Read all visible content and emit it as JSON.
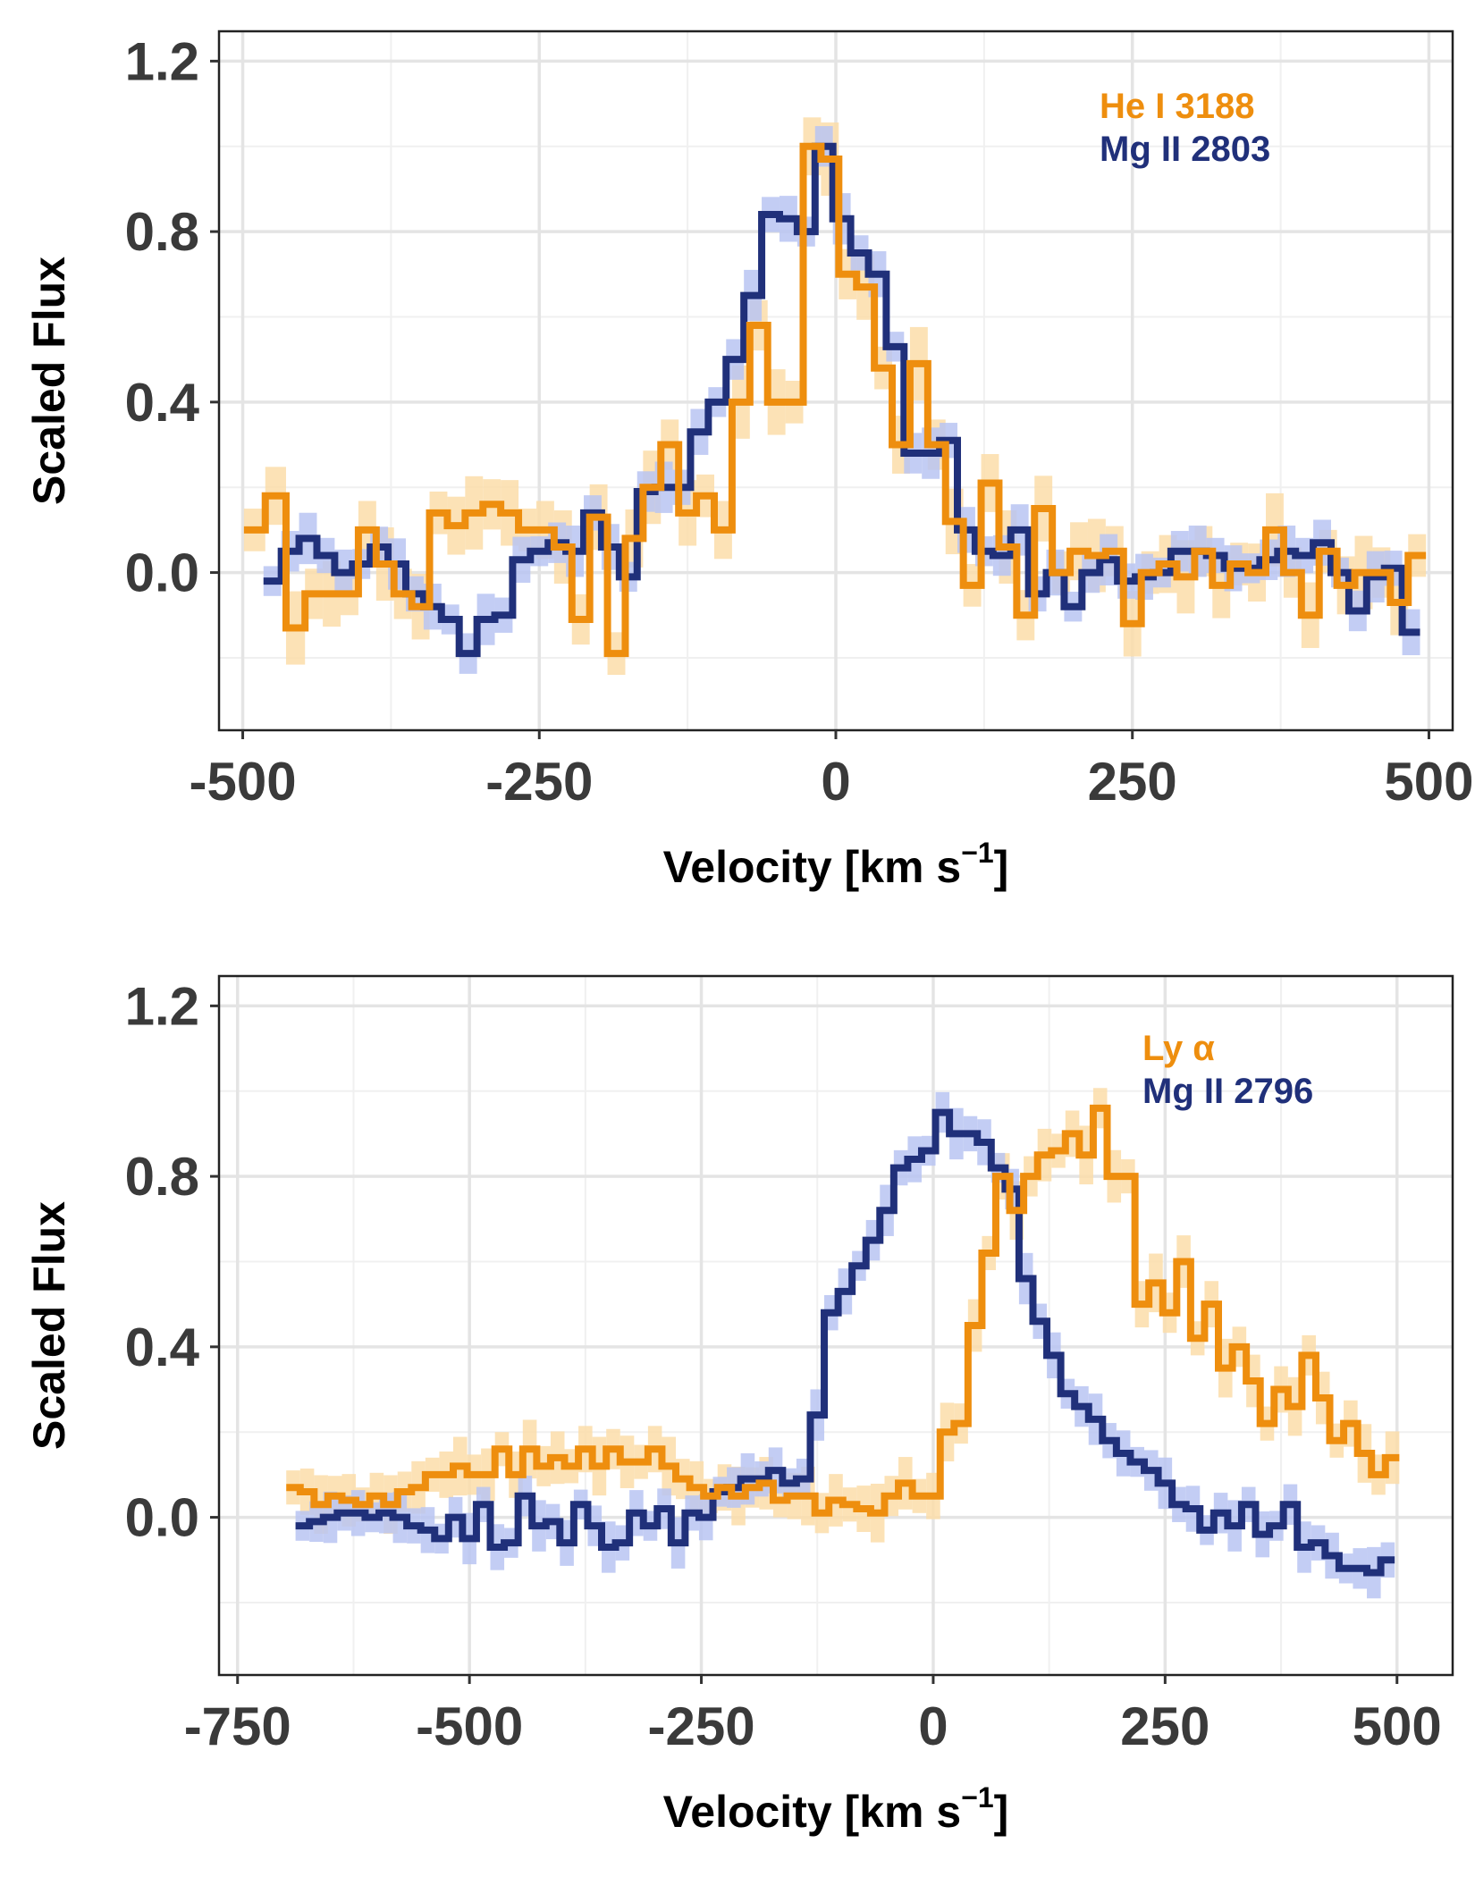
{
  "chart_data": [
    {
      "type": "line",
      "panel": "top",
      "xlabel": "Velocity [km s",
      "xlabel_sup": "−1",
      "xlabel_end": "]",
      "ylabel": "Scaled Flux",
      "xlim": [
        -520,
        520
      ],
      "ylim": [
        -0.37,
        1.27
      ],
      "xticks": [
        -500,
        -250,
        0,
        250,
        500
      ],
      "xtick_labels": [
        "-500",
        "-250",
        "0",
        "250",
        "500"
      ],
      "yticks": [
        0.0,
        0.4,
        0.8,
        1.2
      ],
      "ytick_labels": [
        "0.0",
        "0.4",
        "0.8",
        "1.2"
      ],
      "grid": true,
      "legend_position": "top-right",
      "series": [
        {
          "name": "He I 3188",
          "color": "#EE8E0E",
          "band_color": "#FBDDA9",
          "band_halfwidth": 0.05,
          "x": [
            -490,
            -472,
            -455,
            -440,
            -425,
            -410,
            -395,
            -380,
            -365,
            -350,
            -335,
            -320,
            -305,
            -290,
            -275,
            -260,
            -245,
            -230,
            -215,
            -200,
            -185,
            -170,
            -155,
            -140,
            -125,
            -110,
            -95,
            -80,
            -65,
            -50,
            -35,
            -20,
            -5,
            10,
            25,
            40,
            55,
            70,
            85,
            100,
            115,
            130,
            145,
            160,
            175,
            190,
            205,
            220,
            235,
            250,
            265,
            280,
            295,
            310,
            325,
            340,
            355,
            370,
            385,
            400,
            415,
            430,
            445,
            460,
            475,
            490
          ],
          "y": [
            0.1,
            0.18,
            -0.13,
            -0.05,
            -0.05,
            -0.05,
            0.1,
            0.02,
            -0.05,
            -0.08,
            0.14,
            0.11,
            0.14,
            0.16,
            0.14,
            0.1,
            0.1,
            0.06,
            -0.11,
            0.13,
            -0.19,
            0.08,
            0.2,
            0.3,
            0.14,
            0.18,
            0.1,
            0.4,
            0.58,
            0.4,
            0.4,
            1.0,
            0.97,
            0.7,
            0.67,
            0.48,
            0.3,
            0.49,
            0.3,
            0.12,
            -0.03,
            0.21,
            0.06,
            -0.1,
            0.15,
            0.0,
            0.05,
            0.04,
            0.05,
            -0.12,
            0.0,
            0.02,
            -0.01,
            0.05,
            -0.03,
            0.02,
            0.0,
            0.1,
            0.0,
            -0.1,
            0.05,
            -0.03,
            0.0,
            0.0,
            -0.07,
            0.04
          ]
        },
        {
          "name": "Mg II 2803",
          "color": "#20307A",
          "band_color": "#B8C4F2",
          "band_halfwidth": 0.035,
          "x": [
            -475,
            -460,
            -445,
            -430,
            -415,
            -400,
            -385,
            -370,
            -355,
            -340,
            -325,
            -310,
            -295,
            -280,
            -265,
            -250,
            -235,
            -220,
            -205,
            -190,
            -175,
            -160,
            -145,
            -130,
            -115,
            -100,
            -85,
            -70,
            -55,
            -40,
            -25,
            -10,
            5,
            20,
            35,
            50,
            65,
            80,
            95,
            110,
            125,
            140,
            155,
            170,
            185,
            200,
            215,
            230,
            245,
            260,
            275,
            290,
            305,
            320,
            335,
            350,
            365,
            380,
            395,
            410,
            425,
            440,
            455,
            470,
            485
          ],
          "y": [
            -0.02,
            0.05,
            0.08,
            0.04,
            0.0,
            0.02,
            0.06,
            0.02,
            -0.05,
            -0.08,
            -0.11,
            -0.19,
            -0.11,
            -0.1,
            0.03,
            0.05,
            0.07,
            0.05,
            0.14,
            0.06,
            -0.01,
            0.19,
            0.2,
            0.2,
            0.33,
            0.4,
            0.5,
            0.65,
            0.84,
            0.83,
            0.8,
            1.0,
            0.83,
            0.75,
            0.7,
            0.53,
            0.28,
            0.28,
            0.31,
            0.1,
            0.05,
            0.04,
            0.1,
            -0.05,
            0.0,
            -0.08,
            0.0,
            0.03,
            -0.02,
            -0.01,
            0.0,
            0.05,
            0.05,
            0.04,
            0.01,
            0.01,
            0.03,
            0.05,
            0.04,
            0.07,
            0.0,
            -0.09,
            -0.01,
            0.01,
            -0.14
          ]
        }
      ]
    },
    {
      "type": "line",
      "panel": "bottom",
      "xlabel": "Velocity [km s",
      "xlabel_sup": "−1",
      "xlabel_end": "]",
      "ylabel": "Scaled Flux",
      "xlim": [
        -770,
        560
      ],
      "ylim": [
        -0.37,
        1.27
      ],
      "xticks": [
        -750,
        -500,
        -250,
        0,
        250,
        500
      ],
      "xtick_labels": [
        "-750",
        "-500",
        "-250",
        "0",
        "250",
        "500"
      ],
      "yticks": [
        0.0,
        0.4,
        0.8,
        1.2
      ],
      "ytick_labels": [
        "0.0",
        "0.4",
        "0.8",
        "1.2"
      ],
      "grid": true,
      "legend_position": "top-right",
      "series": [
        {
          "name": "Ly α",
          "color": "#EE8E0E",
          "band_color": "#FBDDA9",
          "band_halfwidth": 0.04,
          "x": [
            -690,
            -675,
            -660,
            -645,
            -630,
            -615,
            -600,
            -585,
            -570,
            -555,
            -540,
            -525,
            -510,
            -495,
            -480,
            -465,
            -450,
            -435,
            -420,
            -405,
            -390,
            -375,
            -360,
            -345,
            -330,
            -315,
            -300,
            -285,
            -270,
            -255,
            -240,
            -225,
            -210,
            -195,
            -180,
            -165,
            -150,
            -135,
            -120,
            -105,
            -90,
            -75,
            -60,
            -45,
            -30,
            -15,
            0,
            15,
            30,
            45,
            60,
            75,
            90,
            105,
            120,
            135,
            150,
            165,
            180,
            195,
            210,
            225,
            240,
            255,
            270,
            285,
            300,
            315,
            330,
            345,
            360,
            375,
            390,
            405,
            420,
            435,
            450,
            465,
            480,
            495
          ],
          "y": [
            0.07,
            0.06,
            0.03,
            0.05,
            0.04,
            0.03,
            0.05,
            0.03,
            0.06,
            0.07,
            0.1,
            0.1,
            0.12,
            0.1,
            0.1,
            0.16,
            0.1,
            0.16,
            0.12,
            0.14,
            0.12,
            0.16,
            0.12,
            0.16,
            0.13,
            0.13,
            0.16,
            0.12,
            0.09,
            0.07,
            0.05,
            0.07,
            0.05,
            0.07,
            0.08,
            0.04,
            0.05,
            0.05,
            0.01,
            0.04,
            0.03,
            0.02,
            0.01,
            0.05,
            0.08,
            0.05,
            0.05,
            0.2,
            0.22,
            0.45,
            0.62,
            0.8,
            0.72,
            0.8,
            0.85,
            0.86,
            0.9,
            0.85,
            0.96,
            0.8,
            0.8,
            0.5,
            0.55,
            0.48,
            0.6,
            0.42,
            0.5,
            0.35,
            0.4,
            0.32,
            0.22,
            0.3,
            0.26,
            0.38,
            0.28,
            0.18,
            0.22,
            0.15,
            0.1,
            0.14
          ]
        },
        {
          "name": "Mg II 2796",
          "color": "#20307A",
          "band_color": "#B8C4F2",
          "band_halfwidth": 0.035,
          "x": [
            -680,
            -665,
            -650,
            -635,
            -620,
            -605,
            -590,
            -575,
            -560,
            -545,
            -530,
            -515,
            -500,
            -485,
            -470,
            -455,
            -440,
            -425,
            -410,
            -395,
            -380,
            -365,
            -350,
            -335,
            -320,
            -305,
            -290,
            -275,
            -260,
            -245,
            -230,
            -215,
            -200,
            -185,
            -170,
            -155,
            -140,
            -125,
            -110,
            -95,
            -80,
            -65,
            -50,
            -35,
            -20,
            -5,
            10,
            25,
            40,
            55,
            70,
            85,
            100,
            115,
            130,
            145,
            160,
            175,
            190,
            205,
            220,
            235,
            250,
            265,
            280,
            295,
            310,
            325,
            340,
            355,
            370,
            385,
            400,
            415,
            430,
            445,
            460,
            475,
            490
          ],
          "y": [
            -0.02,
            -0.01,
            0.0,
            0.01,
            0.01,
            0.0,
            0.01,
            0.0,
            -0.02,
            -0.03,
            -0.05,
            0.0,
            -0.05,
            0.03,
            -0.07,
            -0.06,
            0.05,
            -0.02,
            -0.01,
            -0.06,
            0.03,
            -0.02,
            -0.07,
            -0.06,
            0.01,
            -0.02,
            0.02,
            -0.06,
            0.01,
            0.0,
            0.06,
            0.07,
            0.09,
            0.09,
            0.11,
            0.08,
            0.09,
            0.24,
            0.48,
            0.53,
            0.59,
            0.65,
            0.72,
            0.82,
            0.84,
            0.86,
            0.95,
            0.9,
            0.9,
            0.88,
            0.82,
            0.77,
            0.56,
            0.46,
            0.38,
            0.29,
            0.26,
            0.23,
            0.18,
            0.15,
            0.13,
            0.11,
            0.08,
            0.03,
            0.02,
            -0.03,
            0.01,
            -0.02,
            0.03,
            -0.04,
            -0.02,
            0.03,
            -0.07,
            -0.06,
            -0.09,
            -0.12,
            -0.12,
            -0.13,
            -0.1
          ]
        }
      ]
    }
  ]
}
